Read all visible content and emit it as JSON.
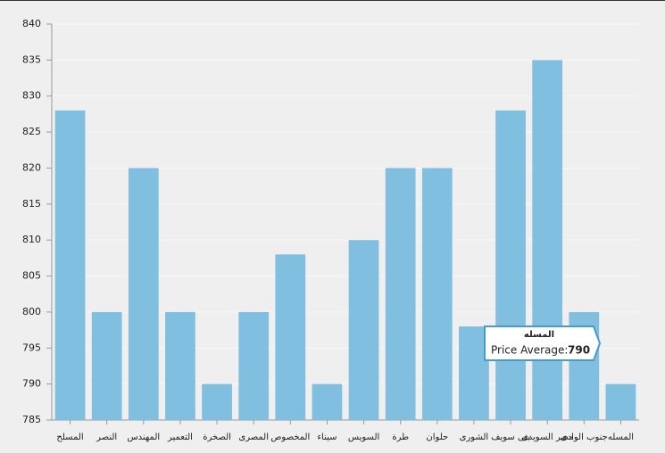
{
  "chart_data": {
    "type": "bar",
    "categories": [
      "المسلح",
      "النصر",
      "المهندس",
      "التعمير",
      "الصخرة",
      "المصرى",
      "المخصوص",
      "سيناء",
      "السويس",
      "طرة",
      "حلوان",
      "الشورى",
      "بنى سويف",
      "مصر السويدى",
      "جنوب الوادى",
      "المسله"
    ],
    "values": [
      828,
      800,
      820,
      800,
      790,
      800,
      808,
      790,
      810,
      820,
      820,
      798,
      828,
      835,
      800,
      790
    ],
    "color": "#80bfe0",
    "ylim": [
      785,
      840
    ],
    "yticks": [
      785,
      790,
      795,
      800,
      805,
      810,
      815,
      820,
      825,
      830,
      835,
      840
    ],
    "grid": true,
    "tooltip": {
      "title": "المسله",
      "label": "Price Average:",
      "value": 790
    }
  }
}
